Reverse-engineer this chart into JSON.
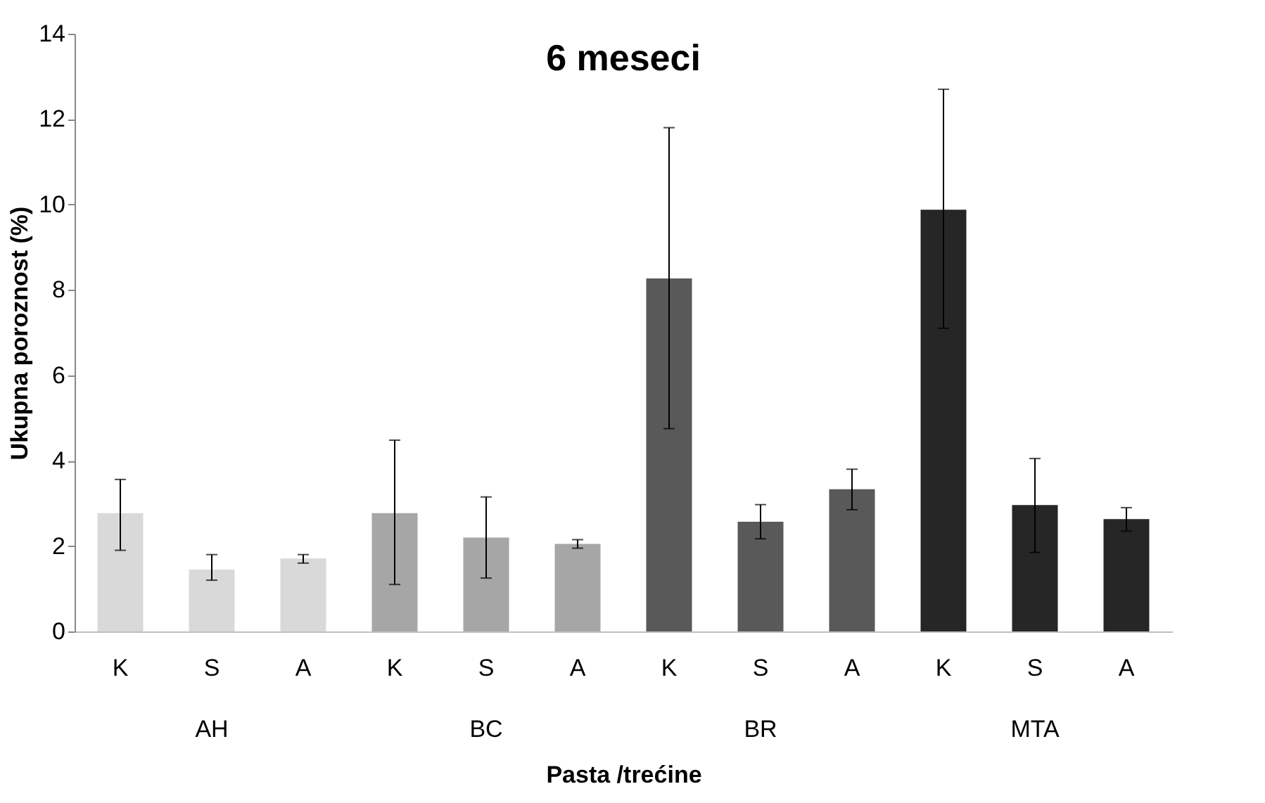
{
  "chart_data": {
    "type": "bar",
    "title": "6 meseci",
    "xlabel": "Pasta /trećine",
    "ylabel": "Ukupna poroznost (%)",
    "categories": [
      "K",
      "S",
      "A",
      "K",
      "S",
      "A",
      "K",
      "S",
      "A",
      "K",
      "S",
      "A"
    ],
    "values": [
      2.77,
      1.45,
      1.71,
      2.77,
      2.2,
      2.05,
      8.27,
      2.57,
      3.33,
      9.88,
      2.96,
      2.63
    ],
    "errors": [
      [
        1.9,
        3.56
      ],
      [
        1.2,
        1.8
      ],
      [
        1.6,
        1.8
      ],
      [
        1.1,
        4.48
      ],
      [
        1.25,
        3.15
      ],
      [
        1.95,
        2.15
      ],
      [
        4.75,
        11.8
      ],
      [
        2.17,
        2.97
      ],
      [
        2.85,
        3.8
      ],
      [
        7.1,
        12.7
      ],
      [
        1.85,
        4.05
      ],
      [
        2.35,
        2.9
      ]
    ],
    "colors": [
      "#d9d9d9",
      "#d9d9d9",
      "#d9d9d9",
      "#a6a6a6",
      "#a6a6a6",
      "#a6a6a6",
      "#595959",
      "#595959",
      "#595959",
      "#262626",
      "#262626",
      "#262626"
    ],
    "annotations": [
      "AH",
      "BC",
      "BR",
      "MTA"
    ],
    "ylim": [
      0,
      14
    ],
    "yticks": [
      0,
      2,
      4,
      6,
      8,
      10,
      12,
      14
    ],
    "grid": false
  }
}
